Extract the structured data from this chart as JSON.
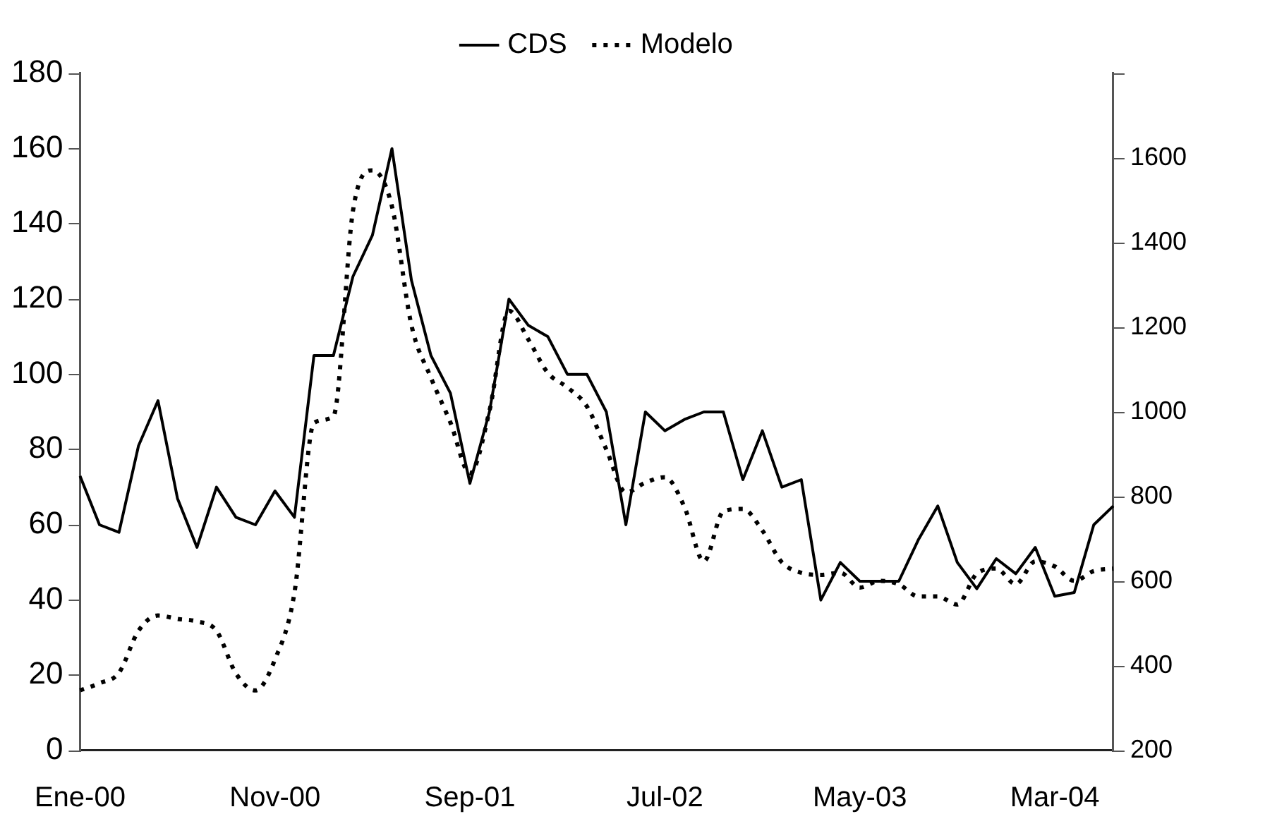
{
  "chart_data": {
    "type": "line",
    "categories": [
      "Ene-00",
      null,
      null,
      null,
      null,
      null,
      null,
      null,
      null,
      null,
      "Nov-00",
      null,
      null,
      null,
      null,
      null,
      null,
      null,
      null,
      null,
      "Sep-01",
      null,
      null,
      null,
      null,
      null,
      null,
      null,
      null,
      null,
      "Jul-02",
      null,
      null,
      null,
      null,
      null,
      null,
      null,
      null,
      null,
      "May-03",
      null,
      null,
      null,
      null,
      null,
      null,
      null,
      null,
      null,
      "Mar-04",
      null,
      null,
      null
    ],
    "series": [
      {
        "name": "CDS",
        "color": "#000000",
        "line_style": "solid",
        "values": [
          73,
          60,
          58,
          81,
          93,
          67,
          54,
          70,
          62,
          60,
          69,
          62,
          105,
          105,
          126,
          137,
          160,
          125,
          105,
          95,
          71,
          90,
          120,
          113,
          110,
          100,
          100,
          90,
          60,
          90,
          85,
          88,
          90,
          90,
          72,
          85,
          70,
          72,
          40,
          50,
          45,
          45,
          45,
          56,
          65,
          50,
          43,
          51,
          47,
          54,
          41,
          42,
          60,
          65
        ]
      },
      {
        "name": "Modelo",
        "color": "#000000",
        "axis": "y2",
        "line_style": "dotted",
        "values": [
          342,
          359,
          384,
          483,
          519,
          511,
          505,
          483,
          382,
          342,
          415,
          573,
          974,
          990,
          1475,
          1571,
          1486,
          1205,
          1081,
          975,
          855,
          1002,
          1239,
          1171,
          1092,
          1058,
          1013,
          911,
          810,
          833,
          846,
          776,
          647,
          765,
          771,
          720,
          645,
          620,
          615,
          620,
          585,
          601,
          593,
          564,
          564,
          545,
          618,
          630,
          593,
          647,
          635,
          601,
          624,
          630
        ]
      }
    ],
    "ylim": [
      0,
      180
    ],
    "yticks": [
      0,
      20,
      40,
      60,
      80,
      100,
      120,
      140,
      160,
      180
    ],
    "y2lim": [
      200,
      1800
    ],
    "y2ticks": [
      200,
      400,
      600,
      800,
      1000,
      1200,
      1400,
      1600,
      {
        "value": 1800,
        "label": null
      }
    ],
    "grid": false,
    "legend": "top",
    "marker": "none"
  }
}
